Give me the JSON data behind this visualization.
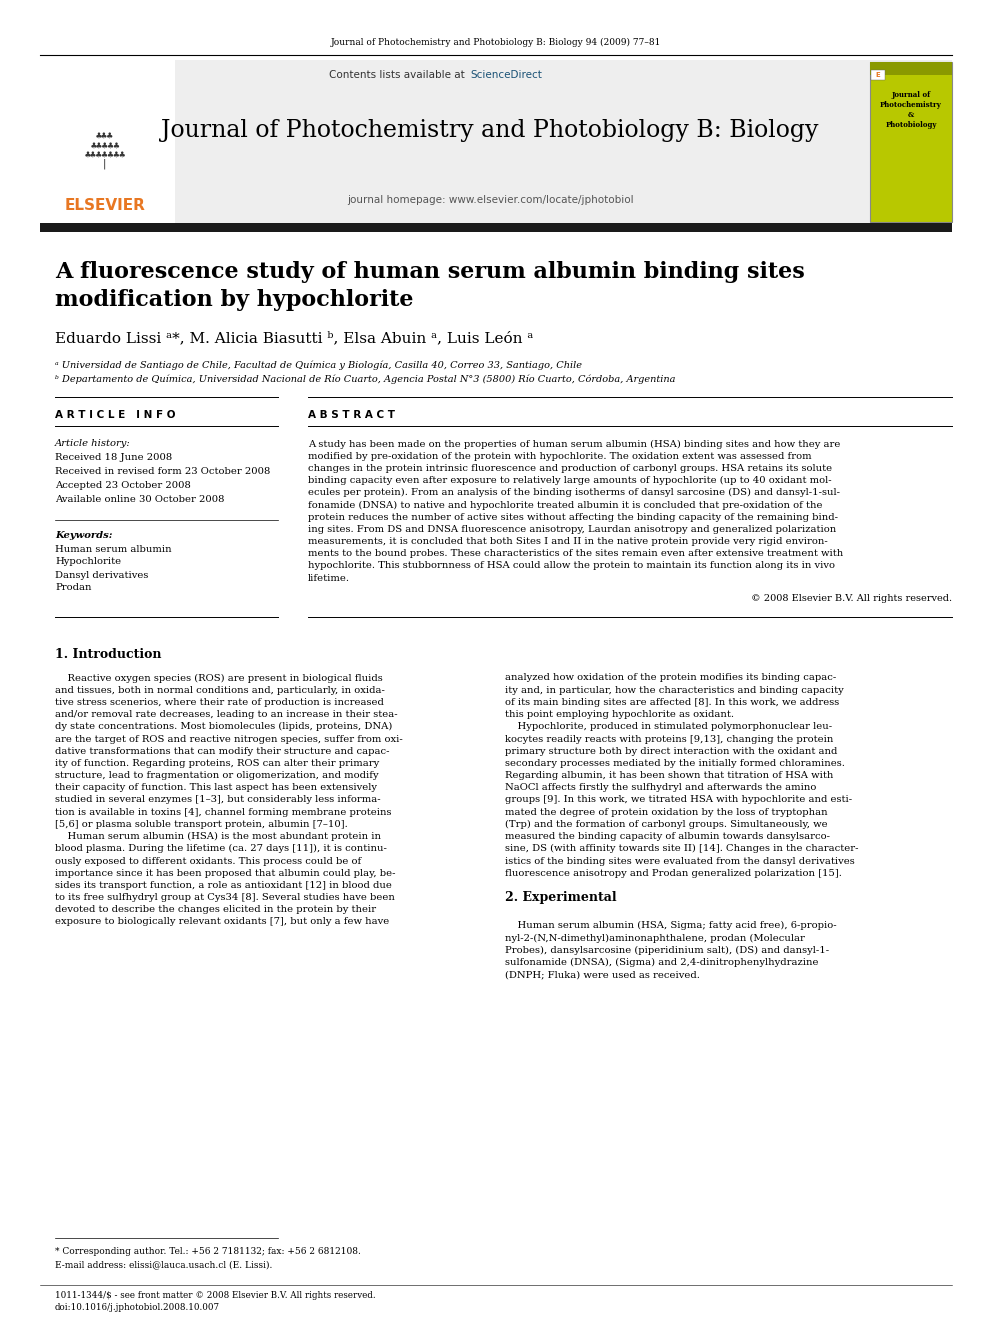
{
  "page_title_small": "Journal of Photochemistry and Photobiology B: Biology 94 (2009) 77–81",
  "journal_name": "Journal of Photochemistry and Photobiology B: Biology",
  "contents_text": "Contents lists available at",
  "sciencedirect_text": "ScienceDirect",
  "homepage_text": "journal homepage: www.elsevier.com/locate/jphotobiol",
  "article_title_line1": "A fluorescence study of human serum albumin binding sites",
  "article_title_line2": "modification by hypochlorite",
  "authors": "Eduardo Lissi ᵃ*, M. Alicia Biasutti ᵇ, Elsa Abuin ᵃ, Luis León ᵃ",
  "affil_a": "ᵃ Universidad de Santiago de Chile, Facultad de Química y Biología, Casilla 40, Correo 33, Santiago, Chile",
  "affil_b": "ᵇ Departamento de Química, Universidad Nacional de Río Cuarto, Agencia Postal N°3 (5800) Río Cuarto, Córdoba, Argentina",
  "article_info_header": "A R T I C L E   I N F O",
  "abstract_header": "A B S T R A C T",
  "article_history_label": "Article history:",
  "received1": "Received 18 June 2008",
  "received2": "Received in revised form 23 October 2008",
  "accepted": "Accepted 23 October 2008",
  "available": "Available online 30 October 2008",
  "keywords_label": "Keywords:",
  "keyword1": "Human serum albumin",
  "keyword2": "Hypochlorite",
  "keyword3": "Dansyl derivatives",
  "keyword4": "Prodan",
  "copyright_text": "© 2008 Elsevier B.V. All rights reserved.",
  "intro_header": "1. Introduction",
  "section2_header": "2. Experimental",
  "footnote1": "* Corresponding author. Tel.: +56 2 7181132; fax: +56 2 6812108.",
  "footnote2": "E-mail address: elissi@lauca.usach.cl (E. Lissi).",
  "footer1": "1011-1344/$ - see front matter © 2008 Elsevier B.V. All rights reserved.",
  "footer2": "doi:10.1016/j.jphotobiol.2008.10.007",
  "bg_color": "#ffffff",
  "black_bar_color": "#1a1a1a",
  "elsevier_orange": "#e87722",
  "sciencedirect_blue": "#1a5276"
}
